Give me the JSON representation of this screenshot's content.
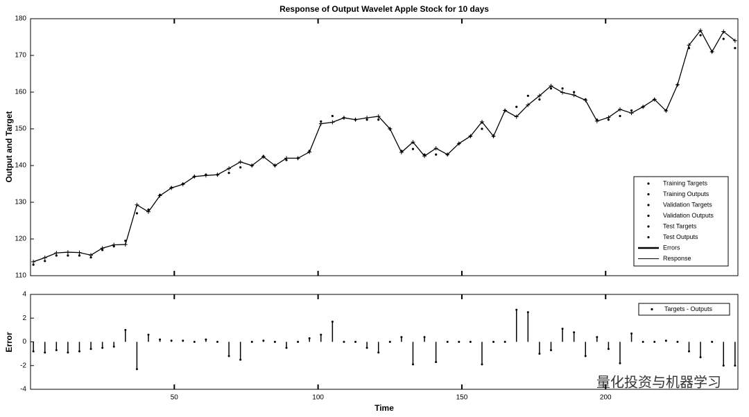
{
  "chart_data": [
    {
      "type": "response",
      "title": "Response of Output Wavelet Apple Stock for 10 days",
      "ylabel": "Output and Target",
      "x": [
        1,
        5,
        9,
        13,
        17,
        21,
        25,
        29,
        33,
        37,
        41,
        45,
        49,
        53,
        57,
        61,
        65,
        69,
        73,
        77,
        81,
        85,
        89,
        93,
        97,
        101,
        105,
        109,
        113,
        117,
        121,
        125,
        129,
        133,
        137,
        141,
        145,
        149,
        153,
        157,
        161,
        165,
        169,
        173,
        177,
        181,
        185,
        189,
        193,
        197,
        201,
        205,
        209,
        213,
        217,
        221,
        225,
        229,
        233,
        237,
        241,
        245
      ],
      "series": [
        {
          "name": "Training Targets",
          "color": "#000000",
          "marker": "dot",
          "values": [
            113,
            114,
            115.5,
            115.5,
            115.5,
            115,
            117,
            118,
            119.5,
            127,
            128,
            132,
            134,
            135,
            137,
            137.5,
            137.5,
            138,
            139.5,
            140,
            142.5,
            140,
            141.5,
            142,
            144,
            152,
            153.5,
            153,
            152.5,
            152.5,
            152.5,
            150,
            144,
            144.5,
            143,
            143,
            143,
            146,
            148,
            150,
            148,
            155,
            156,
            159,
            158,
            161,
            161,
            160,
            158,
            152.5,
            152.5,
            153.5,
            155,
            156,
            158,
            155,
            162,
            172,
            175.5,
            171,
            174.5,
            172
          ]
        },
        {
          "name": "Training Outputs",
          "color": "#000000",
          "marker": "plus",
          "values": [
            113.8,
            114.9,
            116.2,
            116.4,
            116.3,
            115.6,
            117.5,
            118.4,
            118.5,
            129.3,
            127.4,
            131.8,
            133.9,
            134.9,
            137,
            137.3,
            137.5,
            139.2,
            141,
            140,
            142.4,
            140,
            142,
            142,
            143.7,
            151.4,
            151.8,
            153,
            152.5,
            153,
            153.4,
            150,
            143.6,
            146.4,
            142.6,
            144.7,
            143,
            146,
            148,
            151.9,
            148,
            155,
            153.3,
            156.5,
            159,
            161.7,
            159.9,
            159.2,
            157.8,
            152.1,
            153.1,
            155.3,
            154.3,
            156,
            158,
            154.9,
            162,
            172.8,
            176.8,
            171,
            176.5,
            174
          ]
        }
      ],
      "legend_extra": [
        "Validation Targets",
        "Validation Outputs",
        "Test Targets",
        "Test Outputs",
        "Errors",
        "Response"
      ],
      "xlim": [
        0,
        246
      ],
      "ylim": [
        110,
        180
      ],
      "yticks": [
        110,
        120,
        130,
        140,
        150,
        160,
        170,
        180
      ],
      "legend": "lower right"
    },
    {
      "type": "stem",
      "ylabel": "Error",
      "xlabel": "Time",
      "x": [
        1,
        5,
        9,
        13,
        17,
        21,
        25,
        29,
        33,
        37,
        41,
        45,
        49,
        53,
        57,
        61,
        65,
        69,
        73,
        77,
        81,
        85,
        89,
        93,
        97,
        101,
        105,
        109,
        113,
        117,
        121,
        125,
        129,
        133,
        137,
        141,
        145,
        149,
        153,
        157,
        161,
        165,
        169,
        173,
        177,
        181,
        185,
        189,
        193,
        197,
        201,
        205,
        209,
        213,
        217,
        221,
        225,
        229,
        233,
        237,
        241,
        245
      ],
      "series": [
        {
          "name": "Targets - Outputs",
          "color": "#000000",
          "values": [
            -0.8,
            -0.9,
            -0.7,
            -0.9,
            -0.8,
            -0.6,
            -0.5,
            -0.4,
            1.0,
            -2.3,
            0.6,
            0.2,
            0.1,
            0.1,
            0,
            0.2,
            0,
            -1.2,
            -1.5,
            0,
            0.1,
            0,
            -0.5,
            0,
            0.3,
            0.6,
            1.7,
            0,
            0,
            -0.5,
            -0.9,
            0,
            0.4,
            -1.9,
            0.4,
            -1.7,
            0,
            0,
            0,
            -1.9,
            0,
            0,
            2.7,
            2.5,
            -1.0,
            -0.7,
            1.1,
            0.8,
            -1.2,
            0.4,
            -0.6,
            -1.8,
            0.7,
            0,
            0,
            0.1,
            0,
            -0.8,
            -1.3,
            0,
            -2.0,
            -2.0
          ]
        }
      ],
      "xlim": [
        0,
        246
      ],
      "ylim": [
        -4,
        4
      ],
      "yticks": [
        -4,
        -2,
        0,
        2,
        4
      ],
      "xticks": [
        50,
        100,
        150,
        200
      ],
      "legend": "upper right"
    }
  ],
  "watermark": "量化投资与机器学习"
}
